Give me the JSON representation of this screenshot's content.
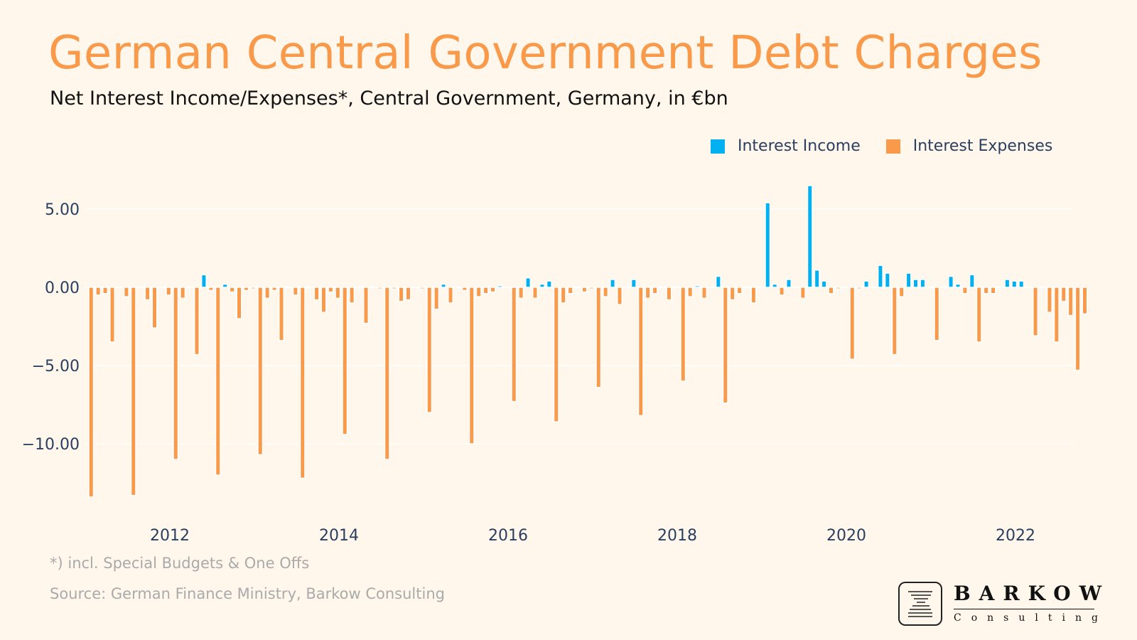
{
  "header": {
    "title": "German Central Government Debt Charges",
    "subtitle": "Net Interest Income/Expenses*, Central Government, Germany, in €bn"
  },
  "footer": {
    "note": "*) incl. Special Budgets & One Offs",
    "source": "Source: German Finance Ministry, Barkow Consulting"
  },
  "logo": {
    "name": "BARKOW",
    "sub": "Consulting"
  },
  "colors": {
    "income": "#00b0f0",
    "expenses": "#f99a4a",
    "background": "#fff6ec",
    "title": "#f99a4a"
  },
  "chart_data": {
    "type": "bar",
    "title": "",
    "xlabel": "",
    "ylabel": "",
    "ylim": [
      -14.5,
      7.5
    ],
    "grid": true,
    "legend_position": "top-right",
    "y_ticks": [
      {
        "value": 5,
        "label": "5.00"
      },
      {
        "value": 0,
        "label": "0.00"
      },
      {
        "value": -5,
        "label": "−5.00"
      },
      {
        "value": -10,
        "label": "−10.00"
      }
    ],
    "x_ticks": [
      "2012",
      "2014",
      "2016",
      "2018",
      "2020",
      "2022"
    ],
    "x_start": "2011-01",
    "values": [
      -13.4,
      -0.5,
      -0.4,
      -3.5,
      0,
      -0.6,
      -13.3,
      0,
      -0.8,
      -2.6,
      0,
      -0.5,
      -11.0,
      -0.7,
      0,
      -4.3,
      0.8,
      -0.2,
      -12.0,
      0.2,
      -0.3,
      -2.0,
      -0.2,
      -0.1,
      -10.7,
      -0.7,
      -0.2,
      -3.4,
      0,
      -0.5,
      -12.2,
      0,
      -0.8,
      -1.6,
      -0.3,
      -0.7,
      -9.4,
      -1.0,
      0,
      -2.3,
      0,
      -0.1,
      -11.0,
      -0.1,
      -0.9,
      -0.8,
      0,
      -0.1,
      -8.0,
      -1.4,
      0.2,
      -1.0,
      0,
      -0.2,
      -10.0,
      -0.6,
      -0.4,
      -0.3,
      0.1,
      0,
      -7.3,
      -0.7,
      0.6,
      -0.7,
      0.2,
      0.4,
      -8.6,
      -1.0,
      -0.4,
      0,
      -0.3,
      -0.1,
      -6.4,
      -0.6,
      0.5,
      -1.1,
      0,
      0.5,
      -8.2,
      -0.7,
      -0.4,
      0,
      -0.8,
      0,
      -6.0,
      -0.6,
      0.1,
      -0.7,
      0,
      0.7,
      -7.4,
      -0.8,
      -0.4,
      0,
      -1.0,
      0,
      5.4,
      0.2,
      -0.5,
      0.5,
      0,
      -0.7,
      6.5,
      1.1,
      0.4,
      -0.4,
      -0.1,
      0,
      -4.6,
      -0.1,
      0.4,
      0,
      1.4,
      0.9,
      -4.3,
      -0.6,
      0.9,
      0.5,
      0.5,
      0,
      -3.4,
      0,
      0.7,
      0.2,
      -0.4,
      0.8,
      -3.5,
      -0.4,
      -0.4,
      0,
      0.5,
      0.4,
      0.4,
      0,
      -3.1,
      0,
      -1.6,
      -3.5,
      -0.9,
      -1.8,
      -5.3,
      -1.7
    ],
    "series": [
      {
        "name": "Interest Income",
        "sign": "positive",
        "color": "#00b0f0"
      },
      {
        "name": "Interest Expenses",
        "sign": "negative",
        "color": "#f99a4a"
      }
    ]
  }
}
